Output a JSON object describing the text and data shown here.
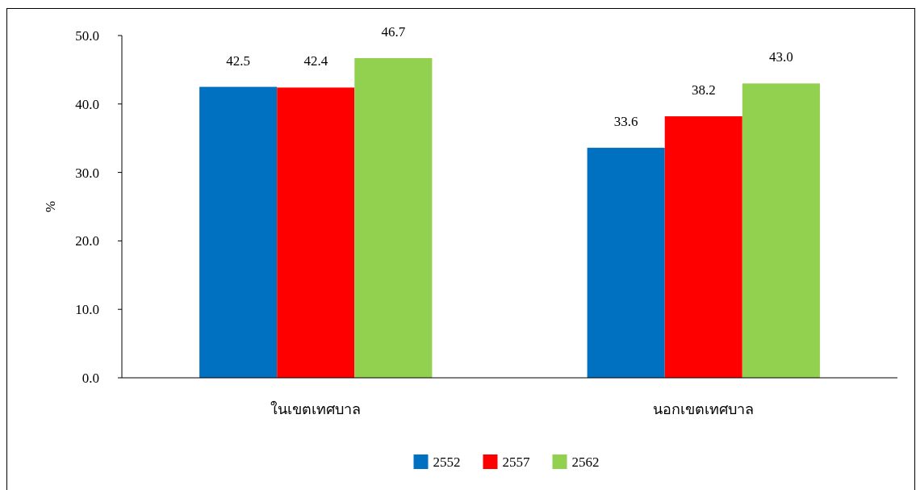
{
  "chart_data": {
    "type": "bar",
    "ylabel": "%",
    "categories": [
      "ในเขตเทศบาล",
      "นอกเขตเทศบาล"
    ],
    "series": [
      {
        "name": "2552",
        "color": "#0070c0",
        "values": [
          42.5,
          33.6
        ],
        "value_labels": [
          "42.5",
          "33.6"
        ]
      },
      {
        "name": "2557",
        "color": "#ff0000",
        "values": [
          42.4,
          38.2
        ],
        "value_labels": [
          "42.4",
          "38.2"
        ]
      },
      {
        "name": "2562",
        "color": "#92d050",
        "values": [
          46.7,
          43.0
        ],
        "value_labels": [
          "46.7",
          "43.0"
        ]
      }
    ],
    "ylim": [
      0,
      50
    ],
    "yticks": [
      {
        "value": 0,
        "label": "0.0"
      },
      {
        "value": 10,
        "label": "10.0"
      },
      {
        "value": 20,
        "label": "20.0"
      },
      {
        "value": 30,
        "label": "30.0"
      },
      {
        "value": 40,
        "label": "40.0"
      },
      {
        "value": 50,
        "label": "50.0"
      }
    ],
    "grid": false,
    "legend": "bottom"
  }
}
